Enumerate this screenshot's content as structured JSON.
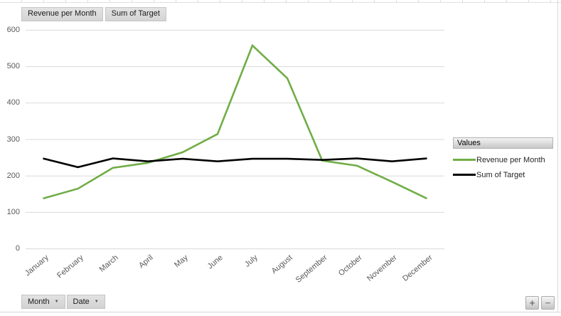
{
  "toolbar": {
    "value_field_buttons": [
      "Revenue per Month",
      "Sum of Target"
    ]
  },
  "chart_data": {
    "type": "line",
    "title": "",
    "categories": [
      "January",
      "February",
      "March",
      "April",
      "May",
      "June",
      "July",
      "August",
      "September",
      "October",
      "November",
      "December"
    ],
    "series": [
      {
        "name": "Revenue per Month",
        "color": "#70AD47",
        "values": [
          138,
          165,
          222,
          236,
          265,
          315,
          558,
          468,
          242,
          228,
          184,
          138
        ]
      },
      {
        "name": "Sum of Target",
        "color": "#000000",
        "values": [
          248,
          224,
          248,
          240,
          247,
          240,
          247,
          247,
          244,
          248,
          240,
          248
        ]
      }
    ],
    "xlabel": "",
    "ylabel": "",
    "ylim": [
      0,
      600
    ],
    "yticks": [
      0,
      100,
      200,
      300,
      400,
      500,
      600
    ],
    "grid": true,
    "grid_color": "#D9D9D9",
    "axis_text_color": "#595959",
    "legend_position": "right"
  },
  "legend": {
    "title": "Values"
  },
  "axis_field_buttons": [
    {
      "label": "Month"
    },
    {
      "label": "Date"
    }
  ],
  "zoom_controls": {
    "plus_label": "+",
    "minus_label": "−"
  },
  "icons": {
    "dropdown_arrow": "▼"
  }
}
